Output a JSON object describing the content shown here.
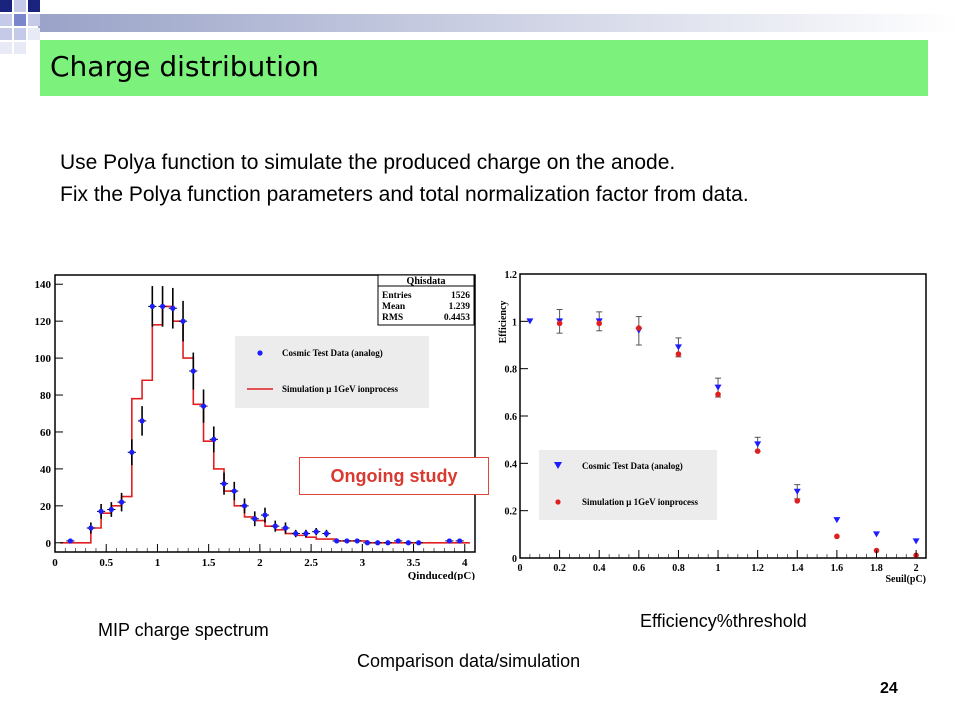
{
  "slide": {
    "title": "Charge distribution",
    "lines": [
      "Use Polya function to simulate the produced charge on the anode.",
      "Fix the Polya function parameters and total normalization factor from data."
    ],
    "caption_left": "MIP charge spectrum",
    "caption_right": "Efficiency%threshold",
    "caption_bottom": "Comparison data/simulation",
    "ongoing_label": "Ongoing study",
    "page_number": "24",
    "colors": {
      "title_bar": "#7cf27c",
      "ongoing": "#d93a30"
    }
  },
  "chart_data": [
    {
      "type": "scatter",
      "title": "",
      "xlabel": "Qinduced(pC)",
      "ylabel": "",
      "xlim": [
        0,
        4.1
      ],
      "ylim": [
        -5,
        145
      ],
      "xticks": [
        "0",
        "0.5",
        "1",
        "1.5",
        "2",
        "2.5",
        "3",
        "3.5",
        "4"
      ],
      "yticks": [
        "0",
        "20",
        "40",
        "60",
        "80",
        "100",
        "120",
        "140"
      ],
      "stats_box": {
        "title": "Qhisdata",
        "rows": [
          {
            "label": "Entries",
            "value": "1526"
          },
          {
            "label": "Mean",
            "value": "1.239"
          },
          {
            "label": "RMS",
            "value": "0.4453"
          }
        ]
      },
      "legend": {
        "position": "top-right",
        "entries": [
          "Cosmic Test Data (analog)",
          "Simulation μ 1GeV ionprocess"
        ]
      },
      "series": [
        {
          "name": "Cosmic Test Data (analog)",
          "style": "points",
          "color": "#1c1cff",
          "x": [
            0.15,
            0.35,
            0.45,
            0.55,
            0.65,
            0.75,
            0.85,
            0.95,
            1.05,
            1.15,
            1.25,
            1.35,
            1.45,
            1.55,
            1.65,
            1.75,
            1.85,
            1.95,
            2.05,
            2.15,
            2.25,
            2.35,
            2.45,
            2.55,
            2.65,
            2.75,
            2.85,
            2.95,
            3.05,
            3.15,
            3.25,
            3.35,
            3.45,
            3.55,
            3.85,
            3.95
          ],
          "y": [
            1,
            8,
            17,
            18,
            22,
            49,
            66,
            128,
            128,
            127,
            120,
            93,
            74,
            56,
            32,
            28,
            20,
            13,
            15,
            9,
            8,
            5,
            5,
            6,
            5,
            1,
            1,
            1,
            0,
            0,
            0,
            1,
            0,
            0,
            1,
            1
          ],
          "err": [
            1,
            3,
            4,
            4,
            5,
            7,
            8,
            11,
            11,
            11,
            11,
            10,
            9,
            7,
            6,
            5,
            4,
            4,
            4,
            3,
            3,
            2,
            2,
            2,
            2,
            1,
            1,
            1,
            0,
            0,
            0,
            1,
            0,
            0,
            1,
            1
          ]
        },
        {
          "name": "Simulation μ 1GeV ionprocess",
          "style": "histogram",
          "color": "#e02020",
          "x": [
            0.1,
            0.2,
            0.3,
            0.4,
            0.5,
            0.6,
            0.7,
            0.8,
            0.9,
            1.0,
            1.1,
            1.2,
            1.3,
            1.4,
            1.5,
            1.6,
            1.7,
            1.8,
            1.9,
            2.0,
            2.1,
            2.2,
            2.3,
            2.4,
            2.5,
            2.6,
            2.7,
            2.8,
            2.9,
            3.0,
            3.1,
            3.2,
            3.3,
            3.4,
            3.5,
            3.6,
            3.7,
            3.8,
            3.9,
            4.0
          ],
          "y": [
            0,
            0,
            0,
            8,
            16,
            20,
            25,
            78,
            88,
            118,
            128,
            120,
            100,
            75,
            55,
            40,
            28,
            20,
            14,
            12,
            9,
            7,
            5,
            4,
            3,
            2,
            2,
            1,
            1,
            1,
            0,
            0,
            0,
            0,
            0,
            0,
            0,
            0,
            0,
            0
          ]
        }
      ]
    },
    {
      "type": "scatter",
      "title": "",
      "xlabel": "Seuil(pC)",
      "ylabel": "Efficiency",
      "xlim": [
        0,
        2.05
      ],
      "ylim": [
        0,
        1.2
      ],
      "xticks": [
        "0",
        "0.2",
        "0.4",
        "0.6",
        "0.8",
        "1",
        "1.2",
        "1.4",
        "1.6",
        "1.8",
        "2"
      ],
      "yticks": [
        "0",
        "0.2",
        "0.4",
        "0.6",
        "0.8",
        "1",
        "1.2"
      ],
      "legend": {
        "position": "bottom-left",
        "entries": [
          "Cosmic Test Data (analog)",
          "Simulation μ 1GeV ionprocess"
        ]
      },
      "series": [
        {
          "name": "Cosmic Test Data (analog)",
          "style": "triangles",
          "color": "#1c1cff",
          "x": [
            0.05,
            0.2,
            0.4,
            0.6,
            0.8,
            1.0,
            1.2,
            1.4,
            1.6,
            1.8,
            2.0
          ],
          "y": [
            1.0,
            1.0,
            1.0,
            0.96,
            0.89,
            0.72,
            0.48,
            0.28,
            0.16,
            0.1,
            0.07
          ],
          "err": [
            0.0,
            0.05,
            0.04,
            0.06,
            0.04,
            0.04,
            0.03,
            0.03,
            0.0,
            0.0,
            0.0
          ]
        },
        {
          "name": "Simulation μ 1GeV ionprocess",
          "style": "points",
          "color": "#e02020",
          "x": [
            0.2,
            0.4,
            0.6,
            0.8,
            1.0,
            1.2,
            1.4,
            1.6,
            1.8,
            2.0
          ],
          "y": [
            1.0,
            1.0,
            0.98,
            0.87,
            0.7,
            0.46,
            0.25,
            0.1,
            0.04,
            0.02
          ]
        }
      ]
    }
  ]
}
